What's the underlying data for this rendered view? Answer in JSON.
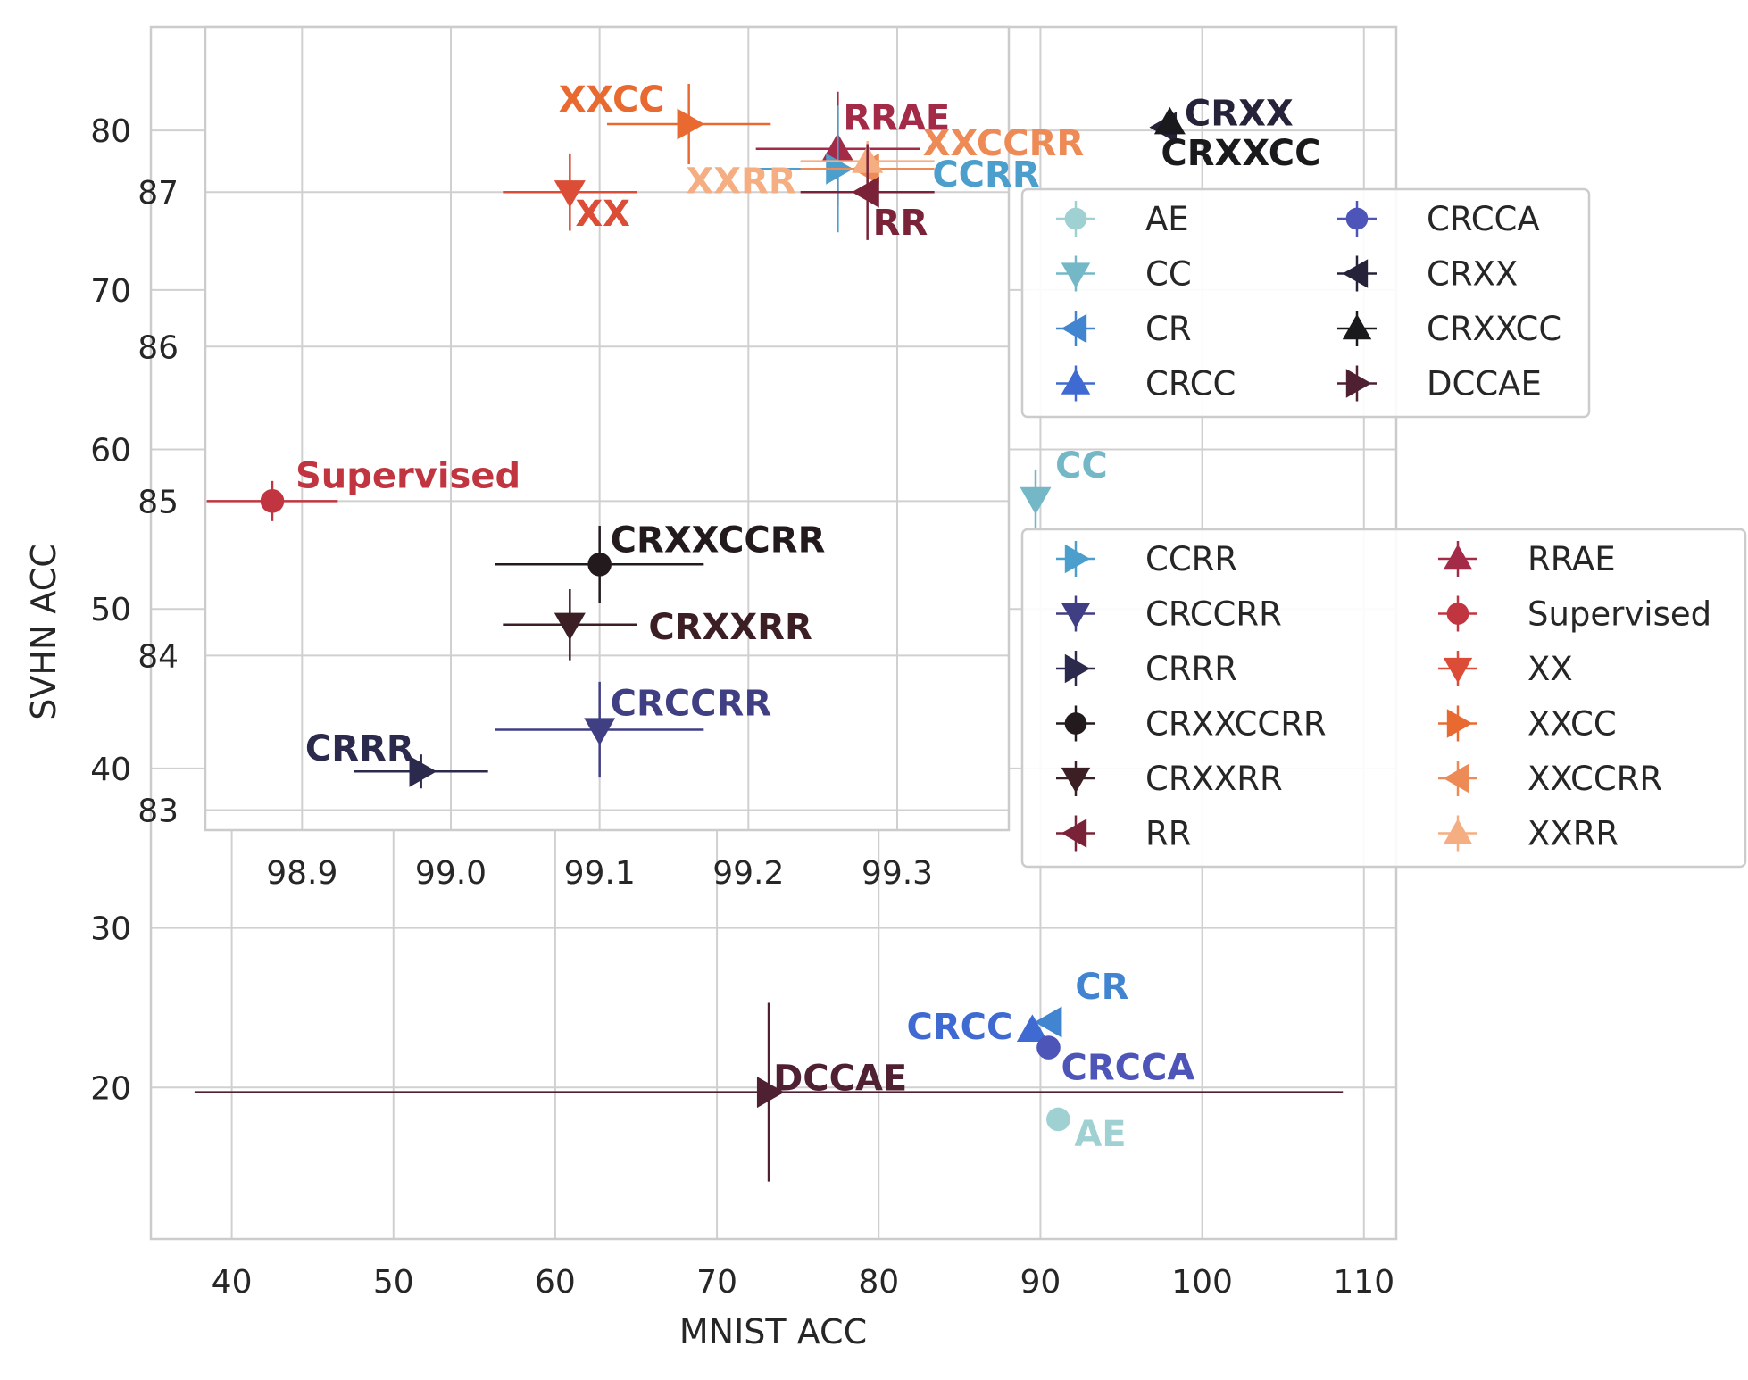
{
  "chart_data": [
    {
      "type": "scatter",
      "xlabel": "MNIST ACC",
      "ylabel": "SVHN ACC",
      "xlim": [
        35,
        112
      ],
      "ylim": [
        10.5,
        86.5
      ],
      "xticks": [
        40,
        50,
        60,
        70,
        80,
        90,
        100,
        110
      ],
      "yticks": [
        20,
        30,
        40,
        50,
        60,
        70,
        80
      ],
      "grid": true,
      "series": [
        {
          "name": "AE",
          "color": "#9fd0d2",
          "marker": "circle",
          "x": 91.1,
          "y": 18.0,
          "xerr": 0.3,
          "yerr": 0.6
        },
        {
          "name": "CC",
          "color": "#74b8c8",
          "marker": "triangle-down",
          "x": 89.7,
          "y": 56.9,
          "xerr": 0.2,
          "yerr": 1.8
        },
        {
          "name": "CR",
          "color": "#4185d0",
          "marker": "triangle-left",
          "x": 90.6,
          "y": 24.1,
          "xerr": 0.2,
          "yerr": 0.4
        },
        {
          "name": "CRCC",
          "color": "#3f6ad1",
          "marker": "triangle-up",
          "x": 89.5,
          "y": 23.6,
          "xerr": 0.2,
          "yerr": 0.4
        },
        {
          "name": "CRCCA",
          "color": "#4e55b8",
          "marker": "circle",
          "x": 90.5,
          "y": 22.5,
          "xerr": 0.2,
          "yerr": 0.4
        },
        {
          "name": "DCCAE",
          "color": "#4f1f32",
          "marker": "triangle-right",
          "x": 73.2,
          "y": 19.7,
          "xerr": 35.5,
          "yerr": 5.6
        },
        {
          "name": "CRXX",
          "color": "#252239",
          "marker": "triangle-left",
          "x": 97.7,
          "y": 80.2,
          "xerr": 0.2,
          "yerr": 0.3
        },
        {
          "name": "CRXXCC",
          "color": "#1a1a1c",
          "marker": "triangle-up",
          "x": 98.0,
          "y": 80.5,
          "xerr": 0.2,
          "yerr": 0.3
        }
      ],
      "annotations": [
        "AE",
        "CC",
        "CR",
        "CRCC",
        "CRCCA",
        "DCCAE",
        "CRXX",
        "CRXXCC"
      ],
      "legend": {
        "placement": "right",
        "entries": [
          "AE",
          "CC",
          "CR",
          "CRCC",
          "CRCCA",
          "CRXX",
          "CRXXCC",
          "DCCAE"
        ]
      }
    },
    {
      "type": "scatter",
      "inset": true,
      "xlim": [
        98.835,
        99.375
      ],
      "ylim": [
        82.87,
        88.07
      ],
      "xticks": [
        98.9,
        99.0,
        99.1,
        99.2,
        99.3
      ],
      "yticks": [
        83,
        84,
        85,
        86,
        87
      ],
      "grid": true,
      "series": [
        {
          "name": "Supervised",
          "color": "#c0353f",
          "marker": "circle",
          "x": 98.88,
          "y": 85.0,
          "xerr": 0.044,
          "yerr": 0.13
        },
        {
          "name": "CRXXCCRR",
          "color": "#231a1e",
          "marker": "circle",
          "x": 99.1,
          "y": 84.59,
          "xerr": 0.07,
          "yerr": 0.25
        },
        {
          "name": "CRXXRR",
          "color": "#3c1f24",
          "marker": "triangle-down",
          "x": 99.08,
          "y": 84.2,
          "xerr": 0.045,
          "yerr": 0.23
        },
        {
          "name": "CRCCRR",
          "color": "#413f84",
          "marker": "triangle-down",
          "x": 99.1,
          "y": 83.52,
          "xerr": 0.07,
          "yerr": 0.31
        },
        {
          "name": "CRRR",
          "color": "#2b294c",
          "marker": "triangle-right",
          "x": 98.98,
          "y": 83.25,
          "xerr": 0.045,
          "yerr": 0.11
        },
        {
          "name": "XXCC",
          "color": "#e86a30",
          "marker": "triangle-right",
          "x": 99.16,
          "y": 87.44,
          "xerr": 0.055,
          "yerr": 0.26
        },
        {
          "name": "XX",
          "color": "#db4d36",
          "marker": "triangle-down",
          "x": 99.08,
          "y": 87.0,
          "xerr": 0.045,
          "yerr": 0.25
        },
        {
          "name": "RRAE",
          "color": "#a32b48",
          "marker": "triangle-up",
          "x": 99.26,
          "y": 87.28,
          "xerr": 0.055,
          "yerr": 0.37
        },
        {
          "name": "CCRR",
          "color": "#4c9fcd",
          "marker": "triangle-right",
          "x": 99.26,
          "y": 87.15,
          "xerr": 0.055,
          "yerr": 0.41
        },
        {
          "name": "XXCCRR",
          "color": "#ed8a56",
          "marker": "triangle-left",
          "x": 99.28,
          "y": 87.15,
          "xerr": 0.045,
          "yerr": 0.13
        },
        {
          "name": "XXRR",
          "color": "#f5ae82",
          "marker": "triangle-up",
          "x": 99.28,
          "y": 87.2,
          "xerr": 0.045,
          "yerr": 0.13
        },
        {
          "name": "RR",
          "color": "#7a2338",
          "marker": "triangle-left",
          "x": 99.28,
          "y": 87.0,
          "xerr": 0.045,
          "yerr": 0.31
        }
      ],
      "annotations": [
        "Supervised",
        "CRXXCCRR",
        "CRXXRR",
        "CRCCRR",
        "CRRR",
        "XXCC",
        "XX",
        "RRAE",
        "CCRR",
        "XXCCRR",
        "XXRR",
        "RR"
      ],
      "legend": {
        "placement": "right",
        "entries": [
          "CCRR",
          "CRCCRR",
          "CRRR",
          "CRXXCCRR",
          "CRXXRR",
          "RR",
          "RRAE",
          "Supervised",
          "XX",
          "XXCC",
          "XXCCRR",
          "XXRR"
        ]
      }
    }
  ]
}
